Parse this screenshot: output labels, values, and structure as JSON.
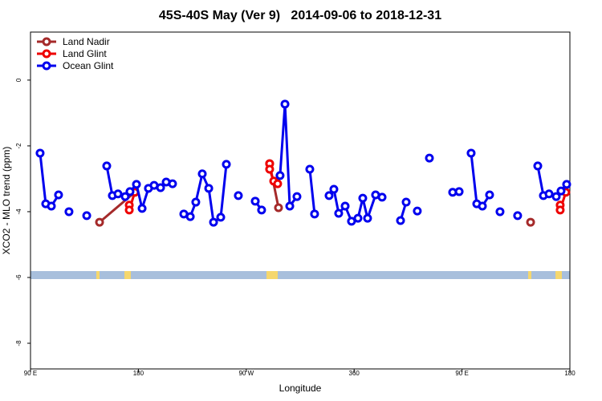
{
  "chart_data": {
    "type": "line",
    "title": "45S-40S May (Ver 9)   2014-09-06 to 2018-12-31",
    "x_label": "Longitude",
    "y_label": "XCO2 - MLO trend (ppm)",
    "xlim": [
      90,
      540
    ],
    "ylim": [
      -8.78,
      1.46
    ],
    "xticks": [
      {
        "value": 90,
        "label": "90 E"
      },
      180,
      {
        "value": 270,
        "label": "90 W"
      },
      360,
      {
        "value": 450,
        "label": "90 E"
      },
      {
        "value": 540,
        "label": "180"
      }
    ],
    "yticks": [
      0,
      -2,
      -4,
      -6,
      -8
    ],
    "legend": "top-left",
    "series": [
      {
        "name": "Land Nadir",
        "color": "#a52a2a",
        "x": [
          147.6,
          177.0,
          null,
          289.5,
          296.9,
          null,
          507.2
        ],
        "values": [
          -4.32,
          -3.41,
          null,
          -2.54,
          -3.88,
          null,
          -4.32
        ]
      },
      {
        "name": "Land Glint",
        "color": "#ee0000",
        "x": [
          172.4,
          172.4,
          177.0,
          null,
          289.5,
          289.5,
          292.9,
          296.2,
          null,
          531.9,
          531.9,
          536.6
        ],
        "values": [
          -3.8,
          -3.95,
          -3.41,
          null,
          -2.54,
          -2.71,
          -3.07,
          -3.15,
          null,
          -3.8,
          -3.95,
          -3.41
        ]
      },
      {
        "name": "Ocean Glint",
        "color": "#0000ee",
        "x": [
          98.0,
          102.7,
          107.4,
          113.4,
          null,
          122.1,
          null,
          136.9,
          null,
          153.6,
          158.3,
          163.0,
          169.0,
          173.0,
          178.4,
          183.1,
          188.4,
          193.1,
          198.5,
          203.2,
          208.5,
          null,
          217.9,
          223.3,
          227.9,
          233.3,
          238.7,
          242.7,
          248.7,
          253.4,
          null,
          263.4,
          null,
          277.5,
          282.8,
          null,
          298.2,
          302.3,
          306.3,
          312.3,
          null,
          323.0,
          327.0,
          null,
          339.1,
          343.1,
          347.1,
          352.5,
          357.8,
          363.2,
          367.2,
          371.2,
          377.9,
          383.3,
          null,
          398.7,
          403.4,
          null,
          412.7,
          null,
          422.8,
          null,
          442.2,
          447.6,
          null,
          457.6,
          462.3,
          467.0,
          473.0,
          null,
          481.7,
          null,
          496.4,
          null,
          513.2,
          517.9,
          522.6,
          528.6,
          532.6,
          537.3
        ],
        "values": [
          -2.22,
          -3.76,
          -3.83,
          -3.49,
          null,
          -4.0,
          null,
          -4.12,
          null,
          -2.61,
          -3.51,
          -3.46,
          -3.54,
          -3.39,
          -3.17,
          -3.9,
          -3.29,
          -3.2,
          -3.27,
          -3.1,
          -3.15,
          null,
          -4.07,
          -4.15,
          -3.71,
          -2.85,
          -3.29,
          -4.32,
          -4.17,
          -2.56,
          null,
          -3.51,
          null,
          -3.68,
          -3.95,
          null,
          -2.9,
          -0.73,
          -3.83,
          -3.54,
          null,
          -2.71,
          -4.07,
          null,
          -3.51,
          -3.32,
          -4.05,
          -3.83,
          -4.29,
          -4.2,
          -3.59,
          -4.2,
          -3.49,
          -3.56,
          null,
          -4.27,
          -3.71,
          null,
          -3.98,
          null,
          -2.37,
          null,
          -3.41,
          -3.39,
          null,
          -2.22,
          -3.76,
          -3.83,
          -3.49,
          null,
          -4.0,
          null,
          -4.12,
          null,
          -2.61,
          -3.51,
          -3.46,
          -3.54,
          -3.37,
          -3.17
        ]
      }
    ]
  }
}
